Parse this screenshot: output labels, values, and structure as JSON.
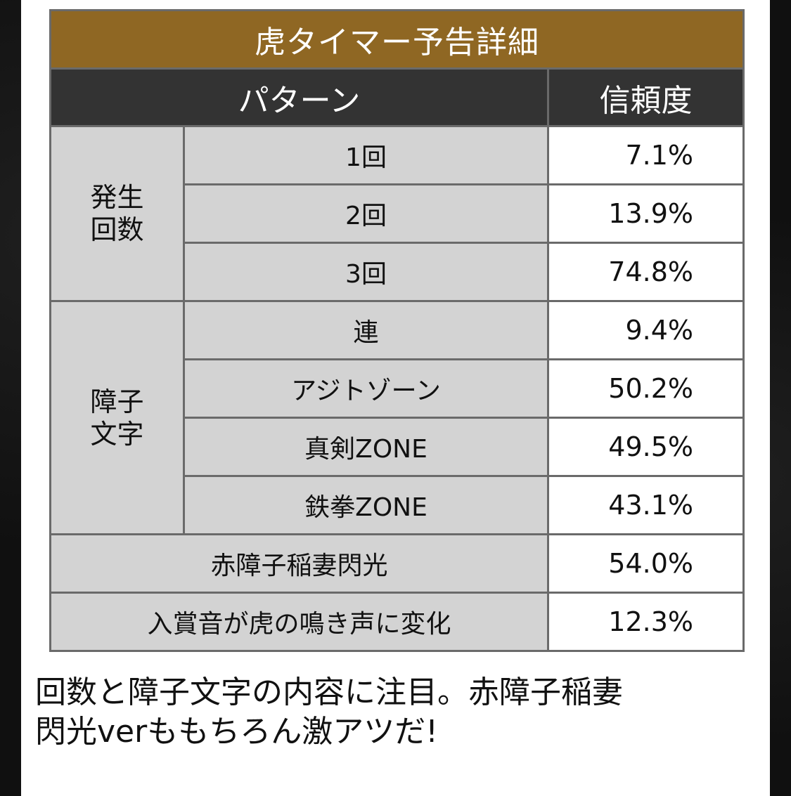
{
  "table": {
    "title": "虎タイマー予告詳細",
    "headers": {
      "pattern": "パターン",
      "reliability": "信頼度"
    },
    "groups": [
      {
        "label_lines": [
          "発生",
          "回数"
        ],
        "rows": [
          {
            "label": "1回",
            "value": "7.1%"
          },
          {
            "label": "2回",
            "value": "13.9%"
          },
          {
            "label": "3回",
            "value": "74.8%"
          }
        ]
      },
      {
        "label_lines": [
          "障子",
          "文字"
        ],
        "rows": [
          {
            "label": "連",
            "value": "9.4%"
          },
          {
            "label": "アジトゾーン",
            "value": "50.2%"
          },
          {
            "label": "真剣ZONE",
            "value": "49.5%"
          },
          {
            "label": "鉄拳ZONE",
            "value": "43.1%"
          }
        ]
      }
    ],
    "full_rows": [
      {
        "label": "赤障子稲妻閃光",
        "value": "54.0%"
      },
      {
        "label": "入賞音が虎の鳴き声に変化",
        "value": "12.3%"
      }
    ]
  },
  "caption": {
    "line1": "回数と障子文字の内容に注目。赤障子稲妻",
    "line2": "閃光verももちろん激アツだ!"
  }
}
